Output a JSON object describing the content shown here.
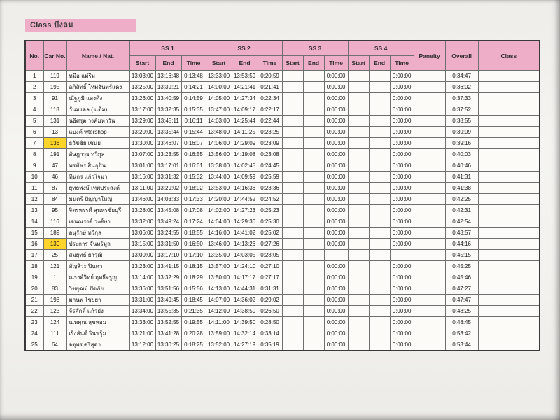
{
  "page": {
    "title": "Class บึงลม"
  },
  "colors": {
    "header_pink": "#efaec8",
    "highlight_yellow": "#ffd42a"
  },
  "table": {
    "headers": {
      "no": "No.",
      "car": "Car No.",
      "name": "Name / Nat.",
      "ss1": "SS 1",
      "ss2": "SS 2",
      "ss3": "SS 3",
      "ss4": "SS 4",
      "panelty": "Panelty",
      "overall": "Overall",
      "class": "Class",
      "sub": [
        "Start",
        "End",
        "Time"
      ]
    },
    "rows": [
      {
        "no": "1",
        "car": "119",
        "car_highlight": false,
        "name": "หมือ แม่ริม",
        "ss1": [
          "13:03:00",
          "13:16:48",
          "0:13:48"
        ],
        "ss2": [
          "13:33:00",
          "13:53:59",
          "0:20:59"
        ],
        "ss3": [
          "",
          "",
          "0:00:00"
        ],
        "ss4": [
          "",
          "",
          "0:00:00"
        ],
        "panelty": "",
        "overall": "0:34:47",
        "class": ""
      },
      {
        "no": "2",
        "car": "195",
        "car_highlight": false,
        "name": "อภิสิทธิ์ ใหม่จันทร์แดง",
        "ss1": [
          "13:25:00",
          "13:39:21",
          "0:14:21"
        ],
        "ss2": [
          "14:00:00",
          "14:21:41",
          "0:21:41"
        ],
        "ss3": [
          "",
          "",
          "0:00:00"
        ],
        "ss4": [
          "",
          "",
          "0:00:00"
        ],
        "panelty": "",
        "overall": "0:36:02",
        "class": ""
      },
      {
        "no": "3",
        "car": "91",
        "car_highlight": false,
        "name": "ณัฐภูมิ แสงดึง",
        "ss1": [
          "13:26:00",
          "13:40:59",
          "0:14:59"
        ],
        "ss2": [
          "14:05:00",
          "14:27:34",
          "0:22:34"
        ],
        "ss3": [
          "",
          "",
          "0:00:00"
        ],
        "ss4": [
          "",
          "",
          "0:00:00"
        ],
        "panelty": "",
        "overall": "0:37:33",
        "class": ""
      },
      {
        "no": "4",
        "car": "118",
        "car_highlight": false,
        "name": "วันมงคล ( แต้ม)",
        "ss1": [
          "13:17:00",
          "13:32:35",
          "0:15:35"
        ],
        "ss2": [
          "13:47:00",
          "14:09:17",
          "0:22:17"
        ],
        "ss3": [
          "",
          "",
          "0:00:00"
        ],
        "ss4": [
          "",
          "",
          "0:00:00"
        ],
        "panelty": "",
        "overall": "0:37:52",
        "class": ""
      },
      {
        "no": "5",
        "car": "131",
        "car_highlight": false,
        "name": "นธิศรุต วงค์มหาวัน",
        "ss1": [
          "13:29:00",
          "13:45:11",
          "0:16:11"
        ],
        "ss2": [
          "14:03:00",
          "14:25:44",
          "0:22:44"
        ],
        "ss3": [
          "",
          "",
          "0:00:00"
        ],
        "ss4": [
          "",
          "",
          "0:00:00"
        ],
        "panelty": "",
        "overall": "0:38:55",
        "class": ""
      },
      {
        "no": "6",
        "car": "13",
        "car_highlight": false,
        "name": "แบงค์ wtershop",
        "ss1": [
          "13:20:00",
          "13:35:44",
          "0:15:44"
        ],
        "ss2": [
          "13:48:00",
          "14:11:25",
          "0:23:25"
        ],
        "ss3": [
          "",
          "",
          "0:00:00"
        ],
        "ss4": [
          "",
          "",
          "0:00:00"
        ],
        "panelty": "",
        "overall": "0:39:09",
        "class": ""
      },
      {
        "no": "7",
        "car": "136",
        "car_highlight": true,
        "name": "ธวัชชัย เชนย",
        "ss1": [
          "13:30:00",
          "13:46:07",
          "0:16:07"
        ],
        "ss2": [
          "14:06:00",
          "14:29:09",
          "0:23:09"
        ],
        "ss3": [
          "",
          "",
          "0:00:00"
        ],
        "ss4": [
          "",
          "",
          "0:00:00"
        ],
        "panelty": "",
        "overall": "0:39:16",
        "class": ""
      },
      {
        "no": "8",
        "car": "191",
        "car_highlight": false,
        "name": "อัษฎาวุธ ทวีกุล",
        "ss1": [
          "13:07:00",
          "13:23:55",
          "0:16:55"
        ],
        "ss2": [
          "13:56:00",
          "14:19:08",
          "0:23:08"
        ],
        "ss3": [
          "",
          "",
          "0:00:00"
        ],
        "ss4": [
          "",
          "",
          "0:00:00"
        ],
        "panelty": "",
        "overall": "0:40:03",
        "class": ""
      },
      {
        "no": "9",
        "car": "47",
        "car_highlight": false,
        "name": "พรพัชร สินธุปัน",
        "ss1": [
          "13:01:00",
          "13:17:01",
          "0:16:01"
        ],
        "ss2": [
          "13:38:00",
          "14:02:45",
          "0:24:45"
        ],
        "ss3": [
          "",
          "",
          "0:00:00"
        ],
        "ss4": [
          "",
          "",
          "0:00:00"
        ],
        "panelty": "",
        "overall": "0:40:46",
        "class": ""
      },
      {
        "no": "10",
        "car": "46",
        "car_highlight": false,
        "name": "ทินกร แก้วใจมา",
        "ss1": [
          "13:16:00",
          "13:31:32",
          "0:15:32"
        ],
        "ss2": [
          "13:44:00",
          "14:09:59",
          "0:25:59"
        ],
        "ss3": [
          "",
          "",
          "0:00:00"
        ],
        "ss4": [
          "",
          "",
          "0:00:00"
        ],
        "panelty": "",
        "overall": "0:41:31",
        "class": ""
      },
      {
        "no": "11",
        "car": "87",
        "car_highlight": false,
        "name": "ยุทธพงษ์ เทพประสงค์",
        "ss1": [
          "13:11:00",
          "13:29:02",
          "0:18:02"
        ],
        "ss2": [
          "13:53:00",
          "14:16:36",
          "0:23:36"
        ],
        "ss3": [
          "",
          "",
          "0:00:00"
        ],
        "ss4": [
          "",
          "",
          "0:00:00"
        ],
        "panelty": "",
        "overall": "0:41:38",
        "class": ""
      },
      {
        "no": "12",
        "car": "84",
        "car_highlight": false,
        "name": "มนตรี ปัญญาใหญ่",
        "ss1": [
          "13:46:00",
          "14:03:33",
          "0:17:33"
        ],
        "ss2": [
          "14:20:00",
          "14:44:52",
          "0:24:52"
        ],
        "ss3": [
          "",
          "",
          "0:00:00"
        ],
        "ss4": [
          "",
          "",
          "0:00:00"
        ],
        "panelty": "",
        "overall": "0:42:25",
        "class": ""
      },
      {
        "no": "13",
        "car": "95",
        "car_highlight": false,
        "name": "จิตรพรรดิ์ สุนทรชัยบุรี",
        "ss1": [
          "13:28:00",
          "13:45:08",
          "0:17:08"
        ],
        "ss2": [
          "14:02:00",
          "14:27:23",
          "0:25:23"
        ],
        "ss3": [
          "",
          "",
          "0:00:00"
        ],
        "ss4": [
          "",
          "",
          "0:00:00"
        ],
        "panelty": "",
        "overall": "0:42:31",
        "class": ""
      },
      {
        "no": "14",
        "car": "116",
        "car_highlight": false,
        "name": "เจนณรงค์ วงศ์ษา",
        "ss1": [
          "13:32:00",
          "13:49:24",
          "0:17:24"
        ],
        "ss2": [
          "14:04:00",
          "14:29:30",
          "0:25:30"
        ],
        "ss3": [
          "",
          "",
          "0:00:00"
        ],
        "ss4": [
          "",
          "",
          "0:00:00"
        ],
        "panelty": "",
        "overall": "0:42:54",
        "class": ""
      },
      {
        "no": "15",
        "car": "189",
        "car_highlight": false,
        "name": "อนุรักษ์ ทวีกุล",
        "ss1": [
          "13:06:00",
          "13:24:55",
          "0:18:55"
        ],
        "ss2": [
          "14:16:00",
          "14:41:02",
          "0:25:02"
        ],
        "ss3": [
          "",
          "",
          "0:00:00"
        ],
        "ss4": [
          "",
          "",
          "0:00:00"
        ],
        "panelty": "",
        "overall": "0:43:57",
        "class": ""
      },
      {
        "no": "16",
        "car": "130",
        "car_highlight": true,
        "name": "ประการ จันทร์มูล",
        "ss1": [
          "13:15:00",
          "13:31:50",
          "0:16:50"
        ],
        "ss2": [
          "13:46:00",
          "14:13:26",
          "0:27:26"
        ],
        "ss3": [
          "",
          "",
          "0:00:00"
        ],
        "ss4": [
          "",
          "",
          "0:00:00"
        ],
        "panelty": "",
        "overall": "0:44:16",
        "class": ""
      },
      {
        "no": "17",
        "car": "25",
        "car_highlight": false,
        "name": "สมยุทธ์ ยาวุฒิ",
        "ss1": [
          "13:00:00",
          "13:17:10",
          "0:17:10"
        ],
        "ss2": [
          "13:35:00",
          "14:03:05",
          "0:28:05"
        ],
        "ss3": [
          "",
          "",
          ""
        ],
        "ss4": [
          "",
          "",
          ""
        ],
        "panelty": "",
        "overall": "0:45:15",
        "class": ""
      },
      {
        "no": "18",
        "car": "121",
        "car_highlight": false,
        "name": "สัญสิวะ ปินดา",
        "ss1": [
          "13:23:00",
          "13:41:15",
          "0:18:15"
        ],
        "ss2": [
          "13:57:00",
          "14:24:10",
          "0:27:10"
        ],
        "ss3": [
          "",
          "",
          "0:00:00"
        ],
        "ss4": [
          "",
          "",
          "0:00:00"
        ],
        "panelty": "",
        "overall": "0:45:25",
        "class": ""
      },
      {
        "no": "19",
        "car": "1",
        "car_highlight": false,
        "name": "ณรงค์วิทย์ ฤทธิ์จรูญ",
        "ss1": [
          "13:14:00",
          "13:32:29",
          "0:18:29"
        ],
        "ss2": [
          "13:50:00",
          "14:17:17",
          "0:27:17"
        ],
        "ss3": [
          "",
          "",
          "0:00:00"
        ],
        "ss4": [
          "",
          "",
          "0:00:00"
        ],
        "panelty": "",
        "overall": "0:45:46",
        "class": ""
      },
      {
        "no": "20",
        "car": "83",
        "car_highlight": false,
        "name": "วิชยุฒม์ ปัดภัย",
        "ss1": [
          "13:36:00",
          "13:51:56",
          "0:15:56"
        ],
        "ss2": [
          "14:13:00",
          "14:44:31",
          "0:31:31"
        ],
        "ss3": [
          "",
          "",
          "0:00:00"
        ],
        "ss4": [
          "",
          "",
          "0:00:00"
        ],
        "panelty": "",
        "overall": "0:47:27",
        "class": ""
      },
      {
        "no": "21",
        "car": "198",
        "car_highlight": false,
        "name": "มานพ ไชยยา",
        "ss1": [
          "13:31:00",
          "13:49:45",
          "0:18:45"
        ],
        "ss2": [
          "14:07:00",
          "14:36:02",
          "0:29:02"
        ],
        "ss3": [
          "",
          "",
          "0:00:00"
        ],
        "ss4": [
          "",
          "",
          "0:00:00"
        ],
        "panelty": "",
        "overall": "0:47:47",
        "class": ""
      },
      {
        "no": "22",
        "car": "123",
        "car_highlight": false,
        "name": "จีรศักดิ์ แก้วยัง",
        "ss1": [
          "13:34:00",
          "13:55:35",
          "0:21:35"
        ],
        "ss2": [
          "14:12:00",
          "14:38:50",
          "0:26:50"
        ],
        "ss3": [
          "",
          "",
          "0:00:00"
        ],
        "ss4": [
          "",
          "",
          "0:00:00"
        ],
        "panelty": "",
        "overall": "0:48:25",
        "class": ""
      },
      {
        "no": "23",
        "car": "124",
        "car_highlight": false,
        "name": "ณพคุณ สุขหอม",
        "ss1": [
          "13:33:00",
          "13:52:55",
          "0:19:55"
        ],
        "ss2": [
          "14:11:00",
          "14:39:50",
          "0:28:50"
        ],
        "ss3": [
          "",
          "",
          "0:00:00"
        ],
        "ss4": [
          "",
          "",
          "0:00:00"
        ],
        "panelty": "",
        "overall": "0:48:45",
        "class": ""
      },
      {
        "no": "24",
        "car": "111",
        "car_highlight": false,
        "name": "เริงสันต์ รินพรุ้ม",
        "ss1": [
          "13:21:00",
          "13:41:28",
          "0:20:28"
        ],
        "ss2": [
          "13:59:00",
          "14:32:14",
          "0:33:14"
        ],
        "ss3": [
          "",
          "",
          "0:00:00"
        ],
        "ss4": [
          "",
          "",
          "0:00:00"
        ],
        "panelty": "",
        "overall": "0:53:42",
        "class": ""
      },
      {
        "no": "25",
        "car": "64",
        "car_highlight": false,
        "name": "จตุพร ศรีสุดา",
        "ss1": [
          "13:12:00",
          "13:30:25",
          "0:18:25"
        ],
        "ss2": [
          "13:52:00",
          "14:27:19",
          "0:35:19"
        ],
        "ss3": [
          "",
          "",
          "0:00:00"
        ],
        "ss4": [
          "",
          "",
          "0:00:00"
        ],
        "panelty": "",
        "overall": "0:53:44",
        "class": ""
      }
    ]
  }
}
